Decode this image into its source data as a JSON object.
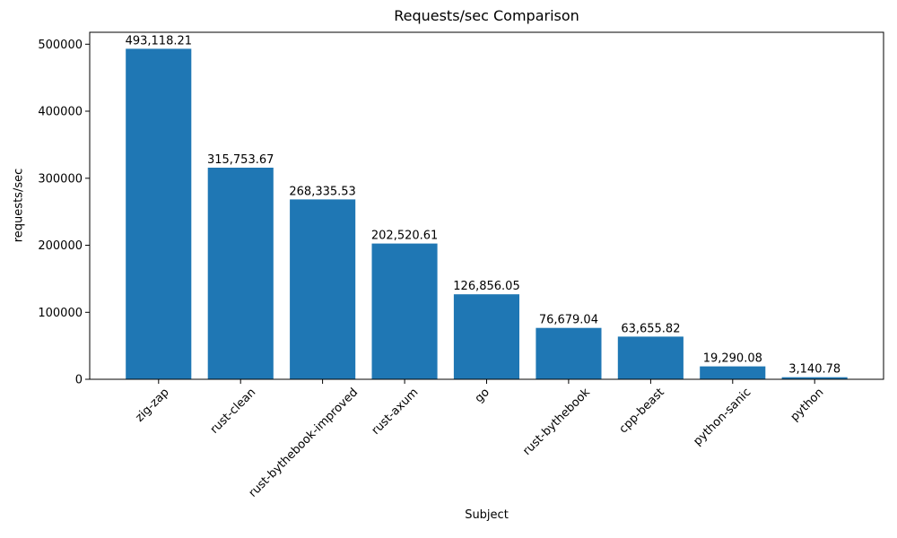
{
  "chart_data": {
    "type": "bar",
    "title": "Requests/sec Comparison",
    "xlabel": "Subject",
    "ylabel": "requests/sec",
    "categories": [
      "zig-zap",
      "rust-clean",
      "rust-bythebook-improved",
      "rust-axum",
      "go",
      "rust-bythebook",
      "cpp-beast",
      "python-sanic",
      "python"
    ],
    "values": [
      493118.21,
      315753.67,
      268335.53,
      202520.61,
      126856.05,
      76679.04,
      63655.82,
      19290.08,
      3140.78
    ],
    "value_labels": [
      "493,118.21",
      "315,753.67",
      "268,335.53",
      "202,520.61",
      "126,856.05",
      "76,679.04",
      "63,655.82",
      "19,290.08",
      "3,140.78"
    ],
    "yticks": [
      0,
      100000,
      200000,
      300000,
      400000,
      500000
    ],
    "ytick_labels": [
      "0",
      "100000",
      "200000",
      "300000",
      "400000",
      "500000"
    ],
    "ylim": [
      0,
      517774
    ],
    "x_tick_rotation_deg": 45,
    "grid": false,
    "legend": null,
    "bar_color": "#1f77b4",
    "frame_color": "#000000",
    "background": "#ffffff"
  }
}
